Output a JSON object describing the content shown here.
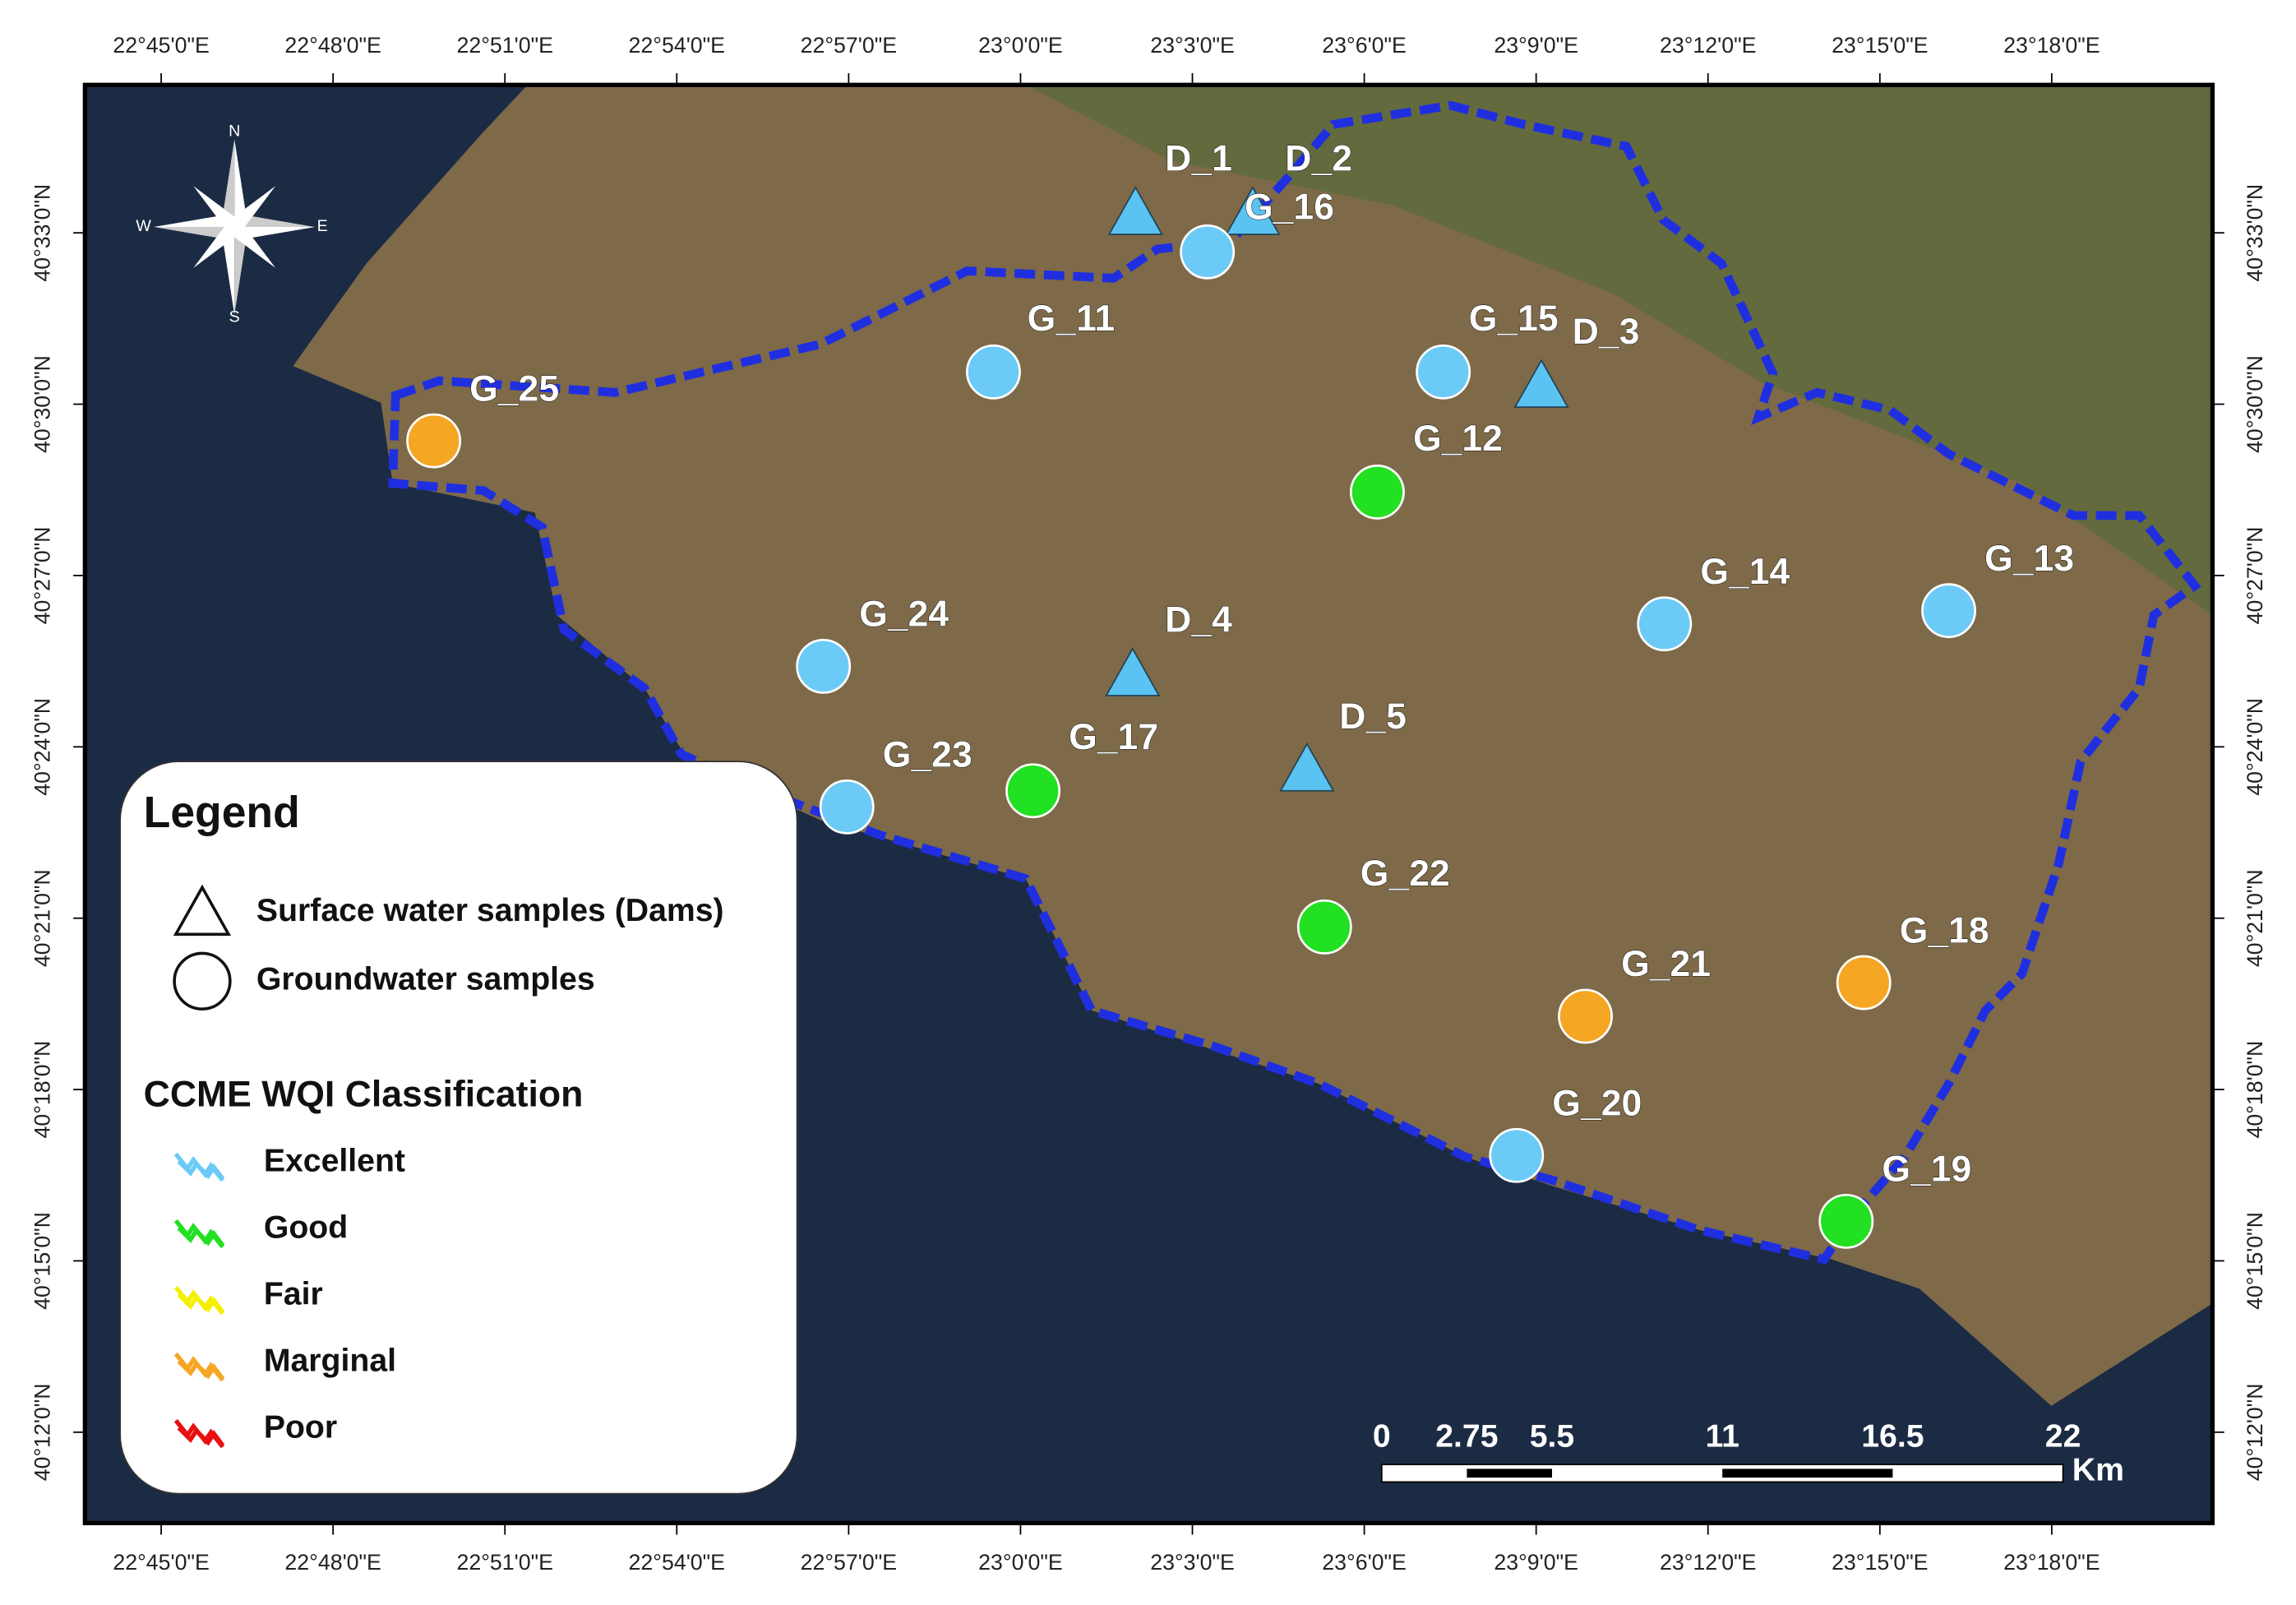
{
  "lon_labels": [
    "22°45'0\"E",
    "22°48'0\"E",
    "22°51'0\"E",
    "22°54'0\"E",
    "22°57'0\"E",
    "23°0'0\"E",
    "23°3'0\"E",
    "23°6'0\"E",
    "23°9'0\"E",
    "23°12'0\"E",
    "23°15'0\"E",
    "23°18'0\"E"
  ],
  "lat_labels": [
    "40°33'0\"N",
    "40°30'0\"N",
    "40°27'0\"N",
    "40°24'0\"N",
    "40°21'0\"N",
    "40°18'0\"N",
    "40°15'0\"N",
    "40°12'0\"N"
  ],
  "compass": {
    "n": "N",
    "s": "S",
    "e": "E",
    "w": "W"
  },
  "points": [
    {
      "label": "D_1",
      "shape": "triangle",
      "color": "#5bc3f2"
    },
    {
      "label": "D_2",
      "shape": "triangle",
      "color": "#5bc3f2"
    },
    {
      "label": "G_16",
      "shape": "circle",
      "color": "#6ccaf7"
    },
    {
      "label": "G_11",
      "shape": "circle",
      "color": "#6ccaf7"
    },
    {
      "label": "G_15",
      "shape": "circle",
      "color": "#6ccaf7"
    },
    {
      "label": "D_3",
      "shape": "triangle",
      "color": "#5bc3f2"
    },
    {
      "label": "G_25",
      "shape": "circle",
      "color": "#f5a623"
    },
    {
      "label": "G_12",
      "shape": "circle",
      "color": "#22e022"
    },
    {
      "label": "G_14",
      "shape": "circle",
      "color": "#6ccaf7"
    },
    {
      "label": "G_13",
      "shape": "circle",
      "color": "#6ccaf7"
    },
    {
      "label": "G_24",
      "shape": "circle",
      "color": "#6ccaf7"
    },
    {
      "label": "D_4",
      "shape": "triangle",
      "color": "#5bc3f2"
    },
    {
      "label": "D_5",
      "shape": "triangle",
      "color": "#5bc3f2"
    },
    {
      "label": "G_23",
      "shape": "circle",
      "color": "#6ccaf7"
    },
    {
      "label": "G_17",
      "shape": "circle",
      "color": "#22e022"
    },
    {
      "label": "G_22",
      "shape": "circle",
      "color": "#22e022"
    },
    {
      "label": "G_21",
      "shape": "circle",
      "color": "#f5a623"
    },
    {
      "label": "G_18",
      "shape": "circle",
      "color": "#f5a623"
    },
    {
      "label": "G_20",
      "shape": "circle",
      "color": "#6ccaf7"
    },
    {
      "label": "G_19",
      "shape": "circle",
      "color": "#22e022"
    }
  ],
  "legend": {
    "title": "Legend",
    "items": [
      "Surface water samples (Dams)",
      "Groundwater samples"
    ],
    "classification_title": "CCME WQI Classification",
    "classes": [
      {
        "name": "Excellent",
        "color": "#6ccaf7"
      },
      {
        "name": "Good",
        "color": "#22e022"
      },
      {
        "name": "Fair",
        "color": "#f5f000"
      },
      {
        "name": "Marginal",
        "color": "#f5a623"
      },
      {
        "name": "Poor",
        "color": "#e81010"
      }
    ]
  },
  "scale_bar": {
    "ticks": [
      0,
      2.75,
      5.5,
      11,
      16.5,
      22
    ],
    "unit": "Km"
  }
}
